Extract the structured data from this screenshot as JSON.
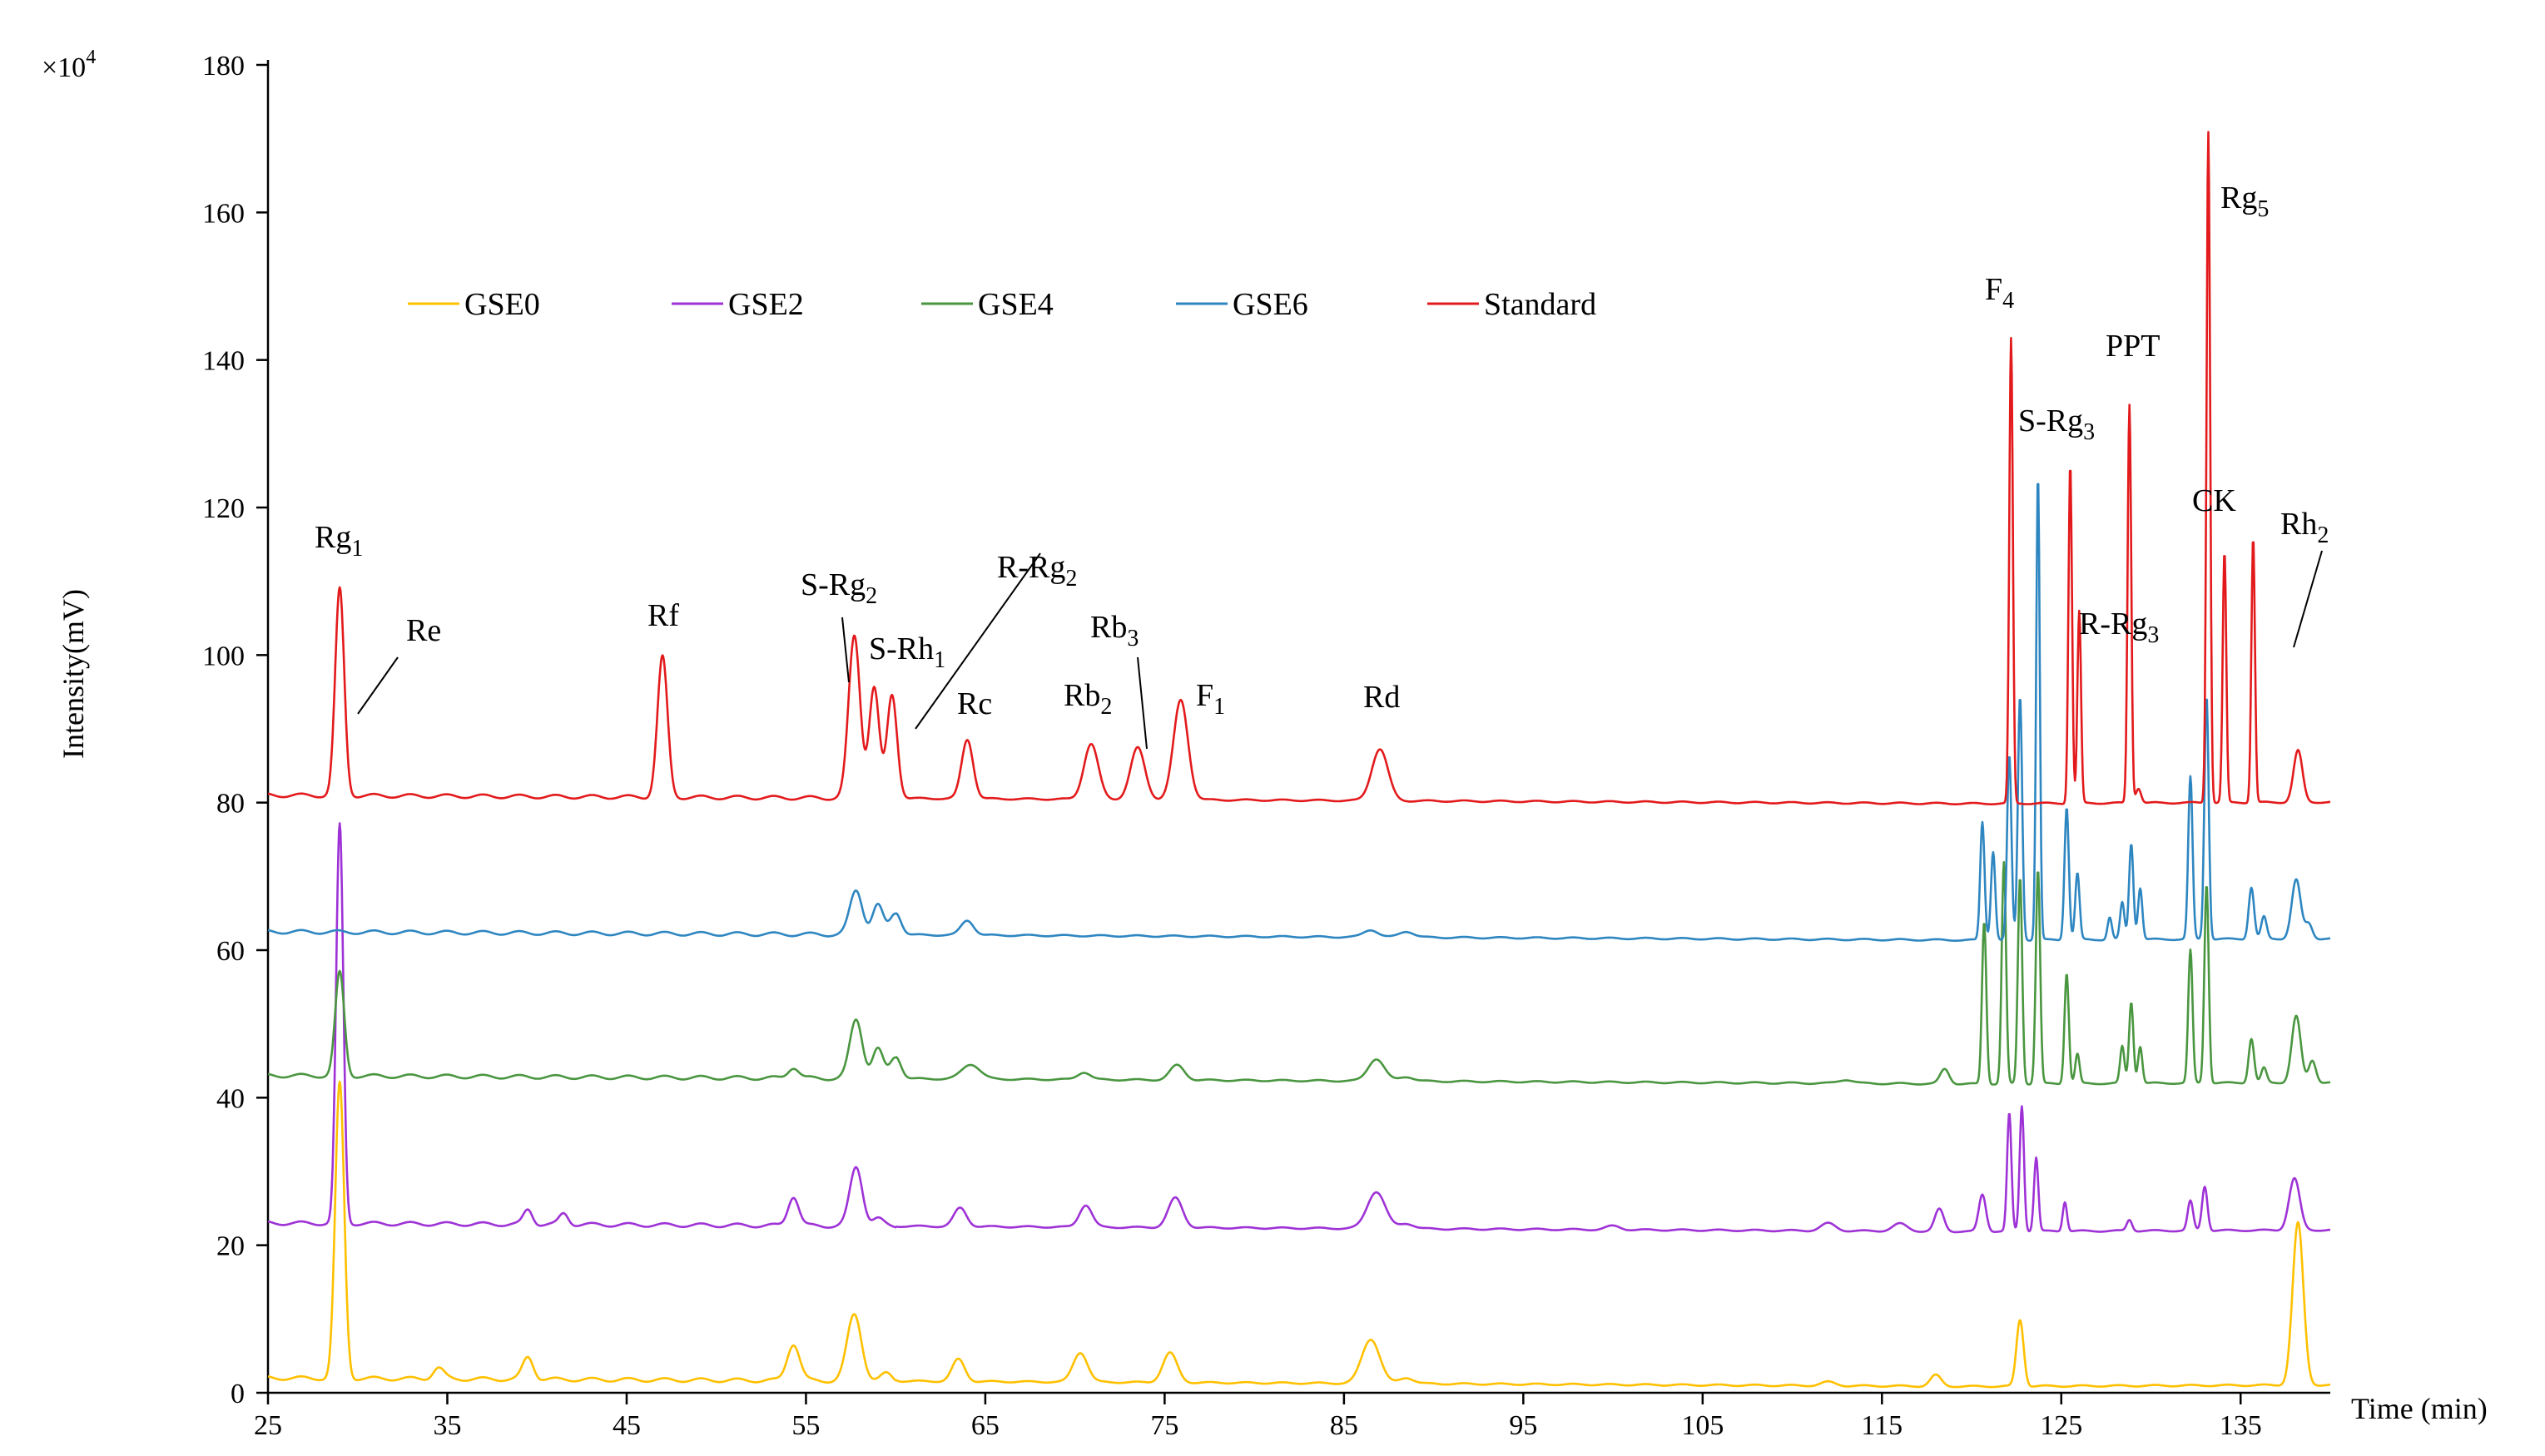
{
  "chart_data": {
    "type": "line",
    "title": "",
    "xlabel": "Time (min)",
    "ylabel": "Intensity(mV)",
    "y_multiplier_label": "×10",
    "y_multiplier_exp": "4",
    "xlim": [
      25,
      140
    ],
    "ylim": [
      0,
      180
    ],
    "x_ticks": [
      25,
      35,
      45,
      55,
      65,
      75,
      85,
      95,
      105,
      115,
      125,
      135
    ],
    "y_ticks": [
      0,
      20,
      40,
      60,
      80,
      100,
      120,
      140,
      160,
      180
    ],
    "legend_position": "top",
    "series": [
      {
        "name": "GSE0",
        "color": "#FFC000",
        "baseline": 2,
        "peaks": [
          [
            29,
            40,
            0.25
          ],
          [
            34.5,
            1.5,
            0.3
          ],
          [
            39.5,
            3,
            0.3
          ],
          [
            54.3,
            5,
            0.35
          ],
          [
            57.7,
            9,
            0.4
          ],
          [
            59.5,
            1,
            0.3
          ],
          [
            63.5,
            3,
            0.35
          ],
          [
            70.3,
            4,
            0.4
          ],
          [
            75.3,
            4,
            0.4
          ],
          [
            86.5,
            6,
            0.5
          ],
          [
            88.5,
            0.8,
            0.4
          ],
          [
            112,
            0.5,
            0.4
          ],
          [
            118,
            1.5,
            0.3
          ],
          [
            122.7,
            9,
            0.2
          ],
          [
            138.2,
            22,
            0.3
          ]
        ]
      },
      {
        "name": "GSE2",
        "color": "#9E32D6",
        "baseline": 23,
        "peaks": [
          [
            29,
            54,
            0.2
          ],
          [
            39.5,
            2,
            0.25
          ],
          [
            41.5,
            1.5,
            0.25
          ],
          [
            54.3,
            4,
            0.3
          ],
          [
            57.8,
            8,
            0.35
          ],
          [
            59,
            1,
            0.3
          ],
          [
            63.6,
            2.5,
            0.35
          ],
          [
            70.6,
            3,
            0.35
          ],
          [
            75.6,
            4,
            0.4
          ],
          [
            86.8,
            5,
            0.5
          ],
          [
            88.5,
            0.7,
            0.4
          ],
          [
            100,
            0.5,
            0.4
          ],
          [
            112,
            1,
            0.4
          ],
          [
            116,
            1,
            0.4
          ],
          [
            118.2,
            3,
            0.25
          ],
          [
            120.6,
            5,
            0.2
          ],
          [
            122.1,
            16,
            0.12
          ],
          [
            122.8,
            17,
            0.12
          ],
          [
            123.6,
            10,
            0.12
          ],
          [
            125.2,
            4,
            0.12
          ],
          [
            128.8,
            1.5,
            0.15
          ],
          [
            132.2,
            4,
            0.15
          ],
          [
            133,
            6,
            0.15
          ],
          [
            138,
            7,
            0.3
          ]
        ]
      },
      {
        "name": "GSE4",
        "color": "#4A9640",
        "baseline": 43,
        "peaks": [
          [
            29,
            14,
            0.25
          ],
          [
            54.3,
            1.5,
            0.3
          ],
          [
            57.8,
            8,
            0.35
          ],
          [
            59,
            4,
            0.3
          ],
          [
            60,
            3,
            0.3
          ],
          [
            64.2,
            2,
            0.5
          ],
          [
            70.5,
            1,
            0.35
          ],
          [
            75.7,
            2,
            0.4
          ],
          [
            86.8,
            3,
            0.45
          ],
          [
            88.5,
            0.6,
            0.4
          ],
          [
            113,
            0.5,
            0.4
          ],
          [
            118.5,
            2,
            0.25
          ],
          [
            120.7,
            22,
            0.12
          ],
          [
            121.8,
            30,
            0.12
          ],
          [
            122.7,
            28,
            0.12
          ],
          [
            123.7,
            29,
            0.12
          ],
          [
            125.3,
            15,
            0.12
          ],
          [
            125.9,
            4,
            0.12
          ],
          [
            128.4,
            5,
            0.12
          ],
          [
            128.9,
            11,
            0.12
          ],
          [
            129.4,
            5,
            0.12
          ],
          [
            132.2,
            18,
            0.12
          ],
          [
            133.1,
            27,
            0.12
          ],
          [
            135.6,
            6,
            0.15
          ],
          [
            136.3,
            2,
            0.15
          ],
          [
            138.1,
            9,
            0.25
          ],
          [
            139,
            3,
            0.2
          ]
        ]
      },
      {
        "name": "GSE6",
        "color": "#2E86C1",
        "baseline": 62.5,
        "peaks": [
          [
            57.8,
            6,
            0.35
          ],
          [
            59,
            4,
            0.3
          ],
          [
            60,
            3,
            0.3
          ],
          [
            64,
            2,
            0.35
          ],
          [
            86.5,
            1,
            0.4
          ],
          [
            88.5,
            0.8,
            0.4
          ],
          [
            120.6,
            16,
            0.12
          ],
          [
            121.2,
            12,
            0.12
          ],
          [
            122.1,
            25,
            0.12
          ],
          [
            122.7,
            33,
            0.12
          ],
          [
            123.7,
            63,
            0.1
          ],
          [
            125.3,
            18,
            0.12
          ],
          [
            125.9,
            9,
            0.12
          ],
          [
            127.7,
            3,
            0.12
          ],
          [
            128.4,
            5,
            0.12
          ],
          [
            128.9,
            13,
            0.12
          ],
          [
            129.4,
            7,
            0.12
          ],
          [
            132.2,
            22,
            0.12
          ],
          [
            133.1,
            33,
            0.12
          ],
          [
            135.6,
            7,
            0.15
          ],
          [
            136.3,
            3,
            0.15
          ],
          [
            138.1,
            8,
            0.25
          ],
          [
            138.8,
            2,
            0.2
          ]
        ]
      },
      {
        "name": "Standard",
        "color": "#E31A1C",
        "baseline": 81,
        "peaks": [
          [
            29,
            28,
            0.25
          ],
          [
            47,
            19,
            0.28
          ],
          [
            57.7,
            22,
            0.32
          ],
          [
            58.8,
            15,
            0.28
          ],
          [
            59.8,
            14,
            0.28
          ],
          [
            64,
            8,
            0.32
          ],
          [
            70.9,
            7.5,
            0.4
          ],
          [
            73.5,
            7,
            0.4
          ],
          [
            75.9,
            13.5,
            0.4
          ],
          [
            87,
            7,
            0.45
          ],
          [
            122.2,
            63,
            0.1
          ],
          [
            125.5,
            46,
            0.1
          ],
          [
            126,
            26,
            0.1
          ],
          [
            128.8,
            54,
            0.1
          ],
          [
            129.3,
            2,
            0.15
          ],
          [
            133.2,
            91,
            0.1
          ],
          [
            134.1,
            34,
            0.1
          ],
          [
            135.7,
            36,
            0.1
          ],
          [
            138.2,
            7,
            0.25
          ]
        ]
      }
    ],
    "annotations": [
      {
        "base": "Rg",
        "sub": "1"
      },
      {
        "base": "Re",
        "sub": ""
      },
      {
        "base": "Rf",
        "sub": ""
      },
      {
        "base": "S-Rg",
        "sub": "2"
      },
      {
        "base": "S-Rh",
        "sub": "1"
      },
      {
        "base": "R-Rg",
        "sub": "2"
      },
      {
        "base": "Rc",
        "sub": ""
      },
      {
        "base": "Rb",
        "sub": "2"
      },
      {
        "base": "Rb",
        "sub": "3"
      },
      {
        "base": "F",
        "sub": "1"
      },
      {
        "base": "Rd",
        "sub": ""
      },
      {
        "base": "F",
        "sub": "4"
      },
      {
        "base": "S-Rg",
        "sub": "3"
      },
      {
        "base": "PPT",
        "sub": ""
      },
      {
        "base": "R-Rg",
        "sub": "3"
      },
      {
        "base": "Rg",
        "sub": "5"
      },
      {
        "base": "CK",
        "sub": ""
      },
      {
        "base": "Rh",
        "sub": "2"
      }
    ]
  }
}
